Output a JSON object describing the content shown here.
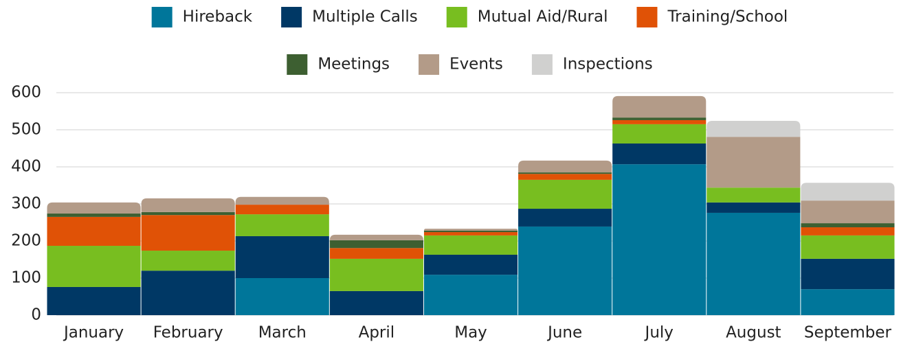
{
  "chart_data": {
    "type": "stacked_bar",
    "categories": [
      "January",
      "February",
      "March",
      "April",
      "May",
      "June",
      "July",
      "August",
      "September"
    ],
    "series": [
      {
        "name": "Hireback",
        "color": "#00769a",
        "values": [
          0,
          0,
          100,
          0,
          109,
          239,
          407,
          276,
          70
        ]
      },
      {
        "name": "Multiple Calls",
        "color": "#003865",
        "values": [
          76,
          120,
          113,
          65,
          54,
          48,
          56,
          28,
          82
        ]
      },
      {
        "name": "Mutual Aid/Rural",
        "color": "#78be20",
        "values": [
          111,
          54,
          59,
          87,
          52,
          78,
          52,
          40,
          63
        ]
      },
      {
        "name": "Training/School",
        "color": "#e05206",
        "values": [
          78,
          96,
          26,
          29,
          9,
          16,
          11,
          0,
          22
        ]
      },
      {
        "name": "Meetings",
        "color": "#3d5f31",
        "values": [
          9,
          8,
          0,
          21,
          4,
          4,
          7,
          0,
          11
        ]
      },
      {
        "name": "Events",
        "color": "#b39b88",
        "values": [
          30,
          37,
          21,
          15,
          5,
          32,
          58,
          137,
          61
        ]
      },
      {
        "name": "Inspections",
        "color": "#d0d0cf",
        "values": [
          0,
          0,
          0,
          0,
          0,
          0,
          0,
          43,
          48
        ]
      }
    ],
    "ylim": [
      0,
      600
    ],
    "yticks": [
      0,
      100,
      200,
      300,
      400,
      500,
      600
    ],
    "grid": true,
    "legend": "top"
  }
}
